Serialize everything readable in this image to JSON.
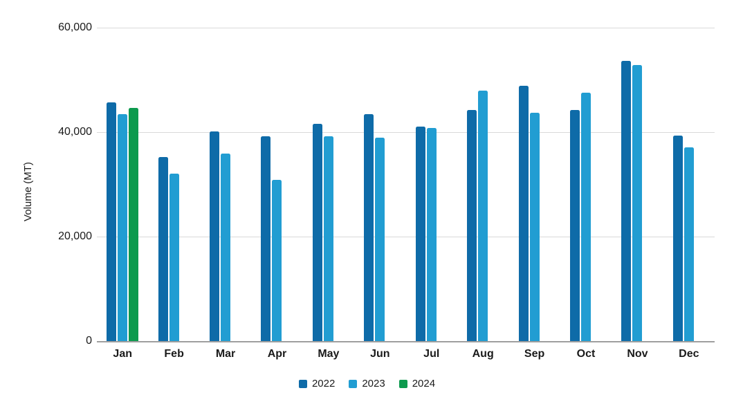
{
  "chart_data": {
    "type": "bar",
    "title": "",
    "xlabel": "",
    "ylabel": "Volume (MT)",
    "categories": [
      "Jan",
      "Feb",
      "Mar",
      "Apr",
      "May",
      "Jun",
      "Jul",
      "Aug",
      "Sep",
      "Oct",
      "Nov",
      "Dec"
    ],
    "series": [
      {
        "name": "2022",
        "color": "#0e6ba8",
        "values": [
          45700,
          35300,
          40200,
          39200,
          41600,
          43500,
          41000,
          44200,
          48900,
          44200,
          53600,
          39400
        ]
      },
      {
        "name": "2023",
        "color": "#219dd2",
        "values": [
          43400,
          32100,
          35900,
          30900,
          39200,
          38900,
          40800,
          47900,
          43700,
          47500,
          52800,
          37100
        ]
      },
      {
        "name": "2024",
        "color": "#0d9a4e",
        "values": [
          44700,
          null,
          null,
          null,
          null,
          null,
          null,
          null,
          null,
          null,
          null,
          null
        ]
      }
    ],
    "ylim": [
      0,
      60000
    ],
    "yticks": [
      {
        "value": 0,
        "label": "0"
      },
      {
        "value": 20000,
        "label": "20,000"
      },
      {
        "value": 40000,
        "label": "40,000"
      },
      {
        "value": 60000,
        "label": "60,000"
      }
    ],
    "grid": true,
    "legend_position": "bottom",
    "colors": {
      "gridline": "#d9d9d9",
      "axis_line": "#9e9e9e",
      "text": "#1a1a1a"
    }
  }
}
